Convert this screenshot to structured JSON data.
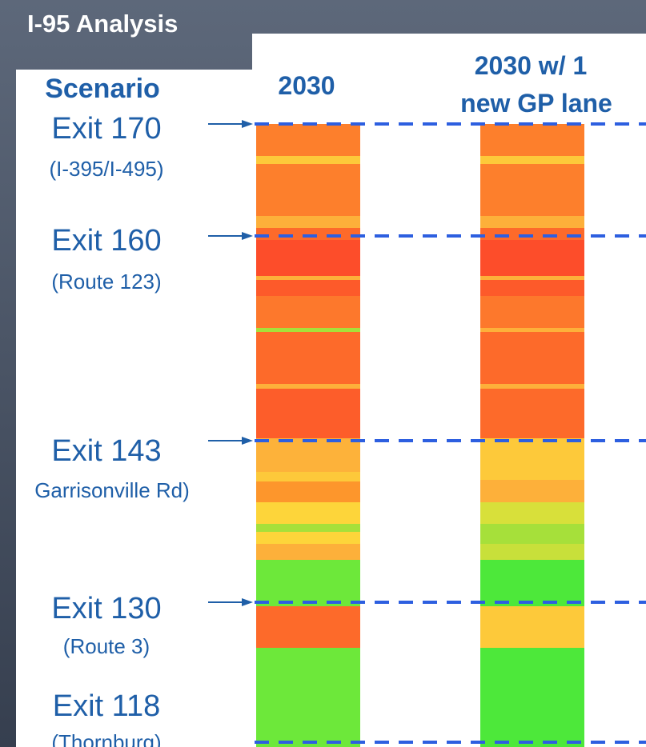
{
  "title": "I-95 Analysis",
  "header": {
    "scenario": "Scenario",
    "columns": [
      [
        "2030"
      ],
      [
        "2030 w/ 1",
        "new GP lane"
      ]
    ]
  },
  "exits": [
    {
      "name": "Exit 170",
      "sub": "(I-395/I-495)"
    },
    {
      "name": "Exit 160",
      "sub": "(Route 123)"
    },
    {
      "name": "Exit 143",
      "sub": "Garrisonville Rd)"
    },
    {
      "name": "Exit 130",
      "sub": "(Route 3)"
    },
    {
      "name": "Exit 118",
      "sub": "(Thornburg)"
    }
  ]
}
